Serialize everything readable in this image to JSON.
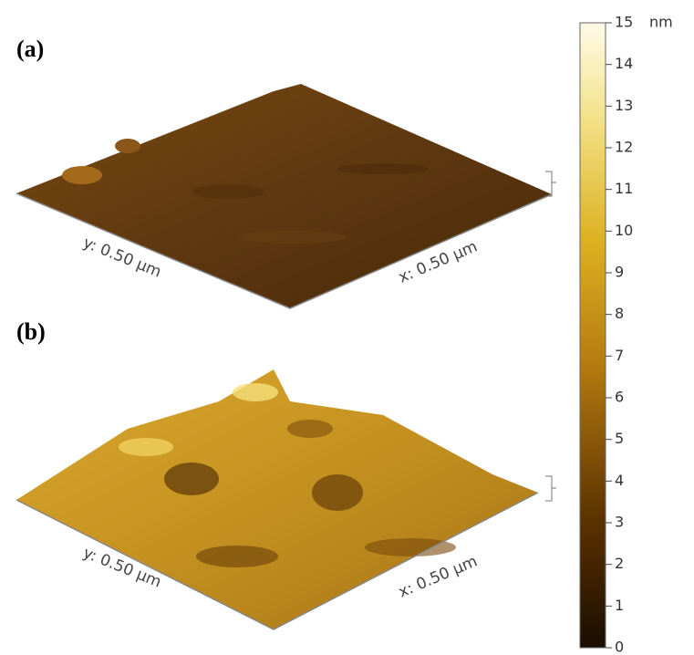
{
  "panels": [
    {
      "label": "(a)",
      "y_axis": "y: 0.50 µm",
      "x_axis": "x: 0.50 µm"
    },
    {
      "label": "(b)",
      "y_axis": "y: 0.50 µm",
      "x_axis": "x: 0.50 µm"
    }
  ],
  "colorbar": {
    "unit": "nm",
    "ticks": [
      0,
      1,
      2,
      3,
      4,
      5,
      6,
      7,
      8,
      9,
      10,
      11,
      12,
      13,
      14,
      15
    ]
  }
}
